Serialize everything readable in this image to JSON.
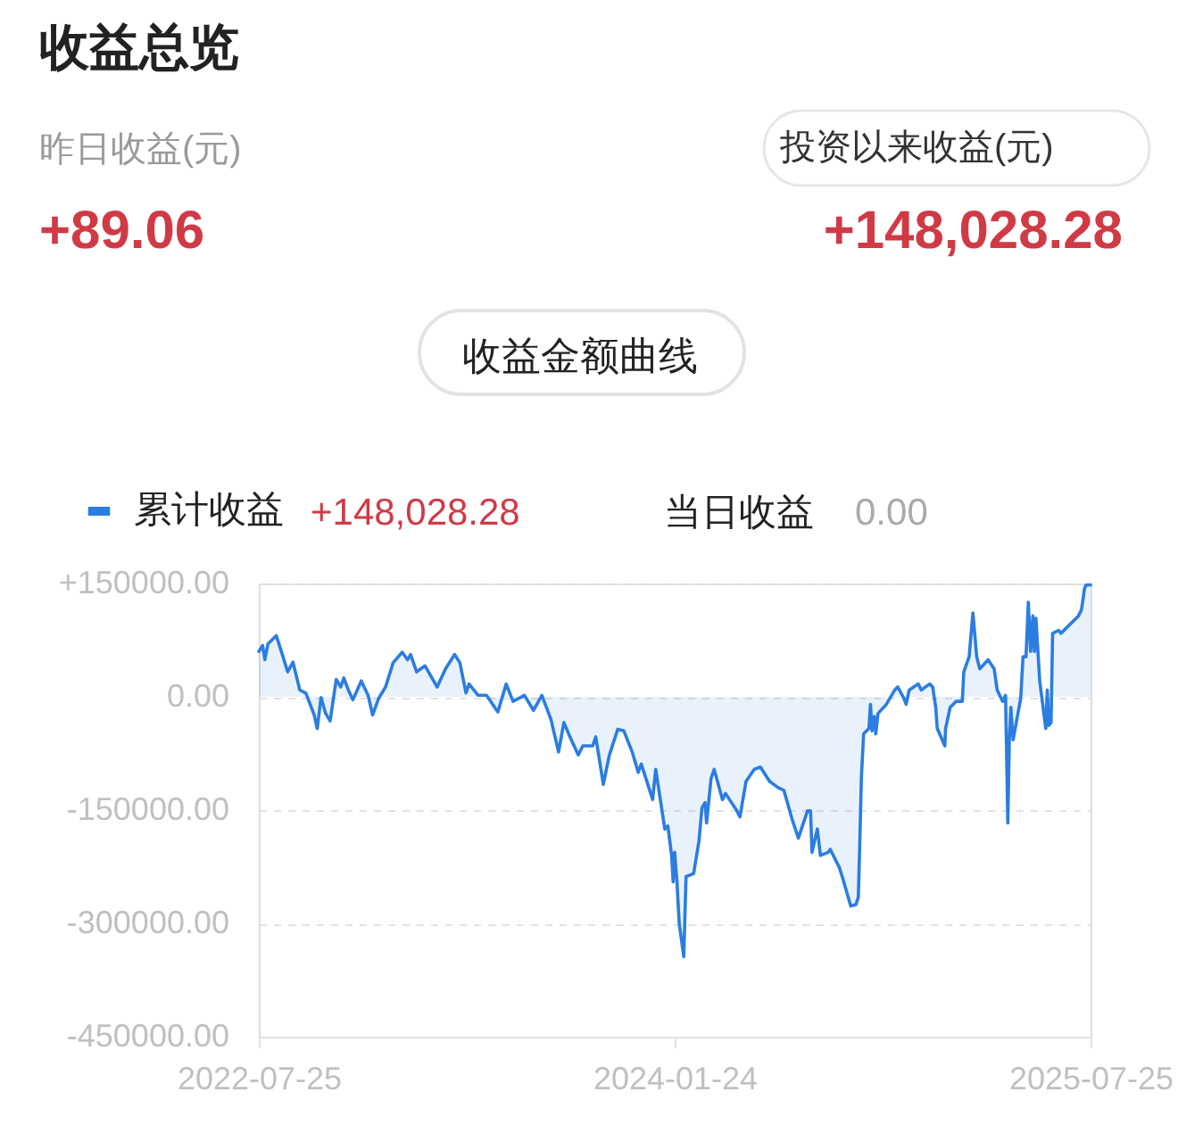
{
  "chart_data": {
    "type": "area",
    "title": "收益总览",
    "annotations": [
      "昨日收益(元)",
      "+89.06",
      "投资以来收益(元)",
      "+148,028.28",
      "收益金额曲线",
      "+148,028.28",
      "当日收益",
      "0.00"
    ],
    "x": [
      "2022-07-25",
      "2022-07-30",
      "2022-08-02",
      "2022-08-06",
      "2022-08-17",
      "2022-08-25",
      "2022-09-01",
      "2022-09-08",
      "2022-09-17",
      "2022-09-25",
      "2022-10-06",
      "2022-10-10",
      "2022-10-15",
      "2022-10-21",
      "2022-10-27",
      "2022-11-04",
      "2022-11-10",
      "2022-11-14",
      "2022-11-20",
      "2022-11-26",
      "2022-12-07",
      "2022-12-16",
      "2022-12-22",
      "2022-12-30",
      "2023-01-08",
      "2023-01-18",
      "2023-01-30",
      "2023-02-06",
      "2023-02-10",
      "2023-02-18",
      "2023-03-01",
      "2023-03-17",
      "2023-03-28",
      "2023-04-09",
      "2023-04-16",
      "2023-04-24",
      "2023-04-28",
      "2023-05-10",
      "2023-05-21",
      "2023-06-05",
      "2023-06-16",
      "2023-06-25",
      "2023-07-10",
      "2023-07-22",
      "2023-08-02",
      "2023-08-14",
      "2023-08-24",
      "2023-08-31",
      "2023-09-08",
      "2023-09-19",
      "2023-09-25",
      "2023-10-08",
      "2023-10-12",
      "2023-10-22",
      "2023-10-30",
      "2023-11-10",
      "2023-11-18",
      "2023-11-29",
      "2023-12-07",
      "2023-12-11",
      "2023-12-26",
      "2023-12-30",
      "2024-01-11",
      "2024-01-15",
      "2024-01-20",
      "2024-01-22",
      "2024-01-24",
      "2024-01-27",
      "2024-01-30",
      "2024-02-05",
      "2024-02-08",
      "2024-02-18",
      "2024-02-25",
      "2024-02-29",
      "2024-03-04",
      "2024-03-06",
      "2024-03-12",
      "2024-03-16",
      "2024-03-27",
      "2024-03-31",
      "2024-04-15",
      "2024-04-19",
      "2024-04-27",
      "2024-05-08",
      "2024-05-16",
      "2024-05-28",
      "2024-06-08",
      "2024-06-16",
      "2024-06-27",
      "2024-07-05",
      "2024-07-17",
      "2024-07-21",
      "2024-07-23",
      "2024-07-30",
      "2024-08-03",
      "2024-08-13",
      "2024-08-16",
      "2024-08-28",
      "2024-09-02",
      "2024-09-12",
      "2024-09-19",
      "2024-09-22",
      "2024-09-24",
      "2024-09-26",
      "2024-09-29",
      "2024-10-06",
      "2024-10-08",
      "2024-10-10",
      "2024-10-13",
      "2024-10-15",
      "2024-10-18",
      "2024-10-29",
      "2024-11-09",
      "2024-11-13",
      "2024-11-21",
      "2024-11-24",
      "2024-11-28",
      "2024-12-10",
      "2024-12-14",
      "2024-12-25",
      "2024-12-29",
      "2025-01-02",
      "2025-01-04",
      "2025-01-14",
      "2025-01-15",
      "2025-01-21",
      "2025-01-29",
      "2025-02-06",
      "2025-02-08",
      "2025-02-15",
      "2025-02-20",
      "2025-02-25",
      "2025-03-01",
      "2025-03-12",
      "2025-03-20",
      "2025-03-24",
      "2025-03-31",
      "2025-04-04",
      "2025-04-07",
      "2025-04-09",
      "2025-04-11",
      "2025-04-14",
      "2025-04-24",
      "2025-04-27",
      "2025-05-01",
      "2025-05-04",
      "2025-05-07",
      "2025-05-10",
      "2025-05-12",
      "2025-05-14",
      "2025-05-19",
      "2025-05-27",
      "2025-05-29",
      "2025-05-31",
      "2025-06-03",
      "2025-06-05",
      "2025-06-13",
      "2025-06-16",
      "2025-06-24",
      "2025-07-09",
      "2025-07-13",
      "2025-07-17",
      "2025-07-19",
      "2025-07-25"
    ],
    "series": [
      {
        "name": "累计收益",
        "color": "#2b7de0",
        "values": [
          60000,
          68000,
          49000,
          70000,
          81000,
          56000,
          33000,
          46000,
          9000,
          5000,
          -24000,
          -42000,
          -1000,
          -22000,
          -32000,
          23000,
          13000,
          25000,
          9000,
          -4000,
          21000,
          2000,
          -24000,
          -2000,
          13000,
          45000,
          59000,
          49000,
          56000,
          33000,
          41000,
          13000,
          37000,
          56000,
          45000,
          5000,
          17000,
          2000,
          2000,
          -20000,
          17000,
          -6000,
          2000,
          -18000,
          2000,
          -30000,
          -73000,
          -34000,
          -53000,
          -77000,
          -65000,
          -65000,
          -53000,
          -116000,
          -77000,
          -43000,
          -45000,
          -73000,
          -100000,
          -89000,
          -136000,
          -96000,
          -175000,
          -171000,
          -210000,
          -245000,
          -206000,
          -245000,
          -300000,
          -344000,
          -238000,
          -234000,
          -191000,
          -147000,
          -140000,
          -167000,
          -108000,
          -96000,
          -136000,
          -128000,
          -151000,
          -159000,
          -112000,
          -96000,
          -93000,
          -112000,
          -120000,
          -124000,
          -163000,
          -187000,
          -151000,
          -151000,
          -206000,
          -175000,
          -210000,
          -206000,
          -202000,
          -226000,
          -242000,
          -277000,
          -275000,
          -265000,
          -191000,
          -108000,
          -49000,
          -42000,
          -10000,
          -45000,
          -26000,
          -49000,
          -22000,
          -10000,
          9000,
          13000,
          -2000,
          -10000,
          9000,
          17000,
          9000,
          17000,
          13000,
          -14000,
          -42000,
          -65000,
          -42000,
          -14000,
          -6000,
          -6000,
          33000,
          53000,
          111000,
          53000,
          37000,
          49000,
          37000,
          9000,
          -6000,
          2000,
          -167000,
          -57000,
          -14000,
          -57000,
          -2000,
          53000,
          53000,
          125000,
          60000,
          107000,
          60000,
          104000,
          21000,
          -42000,
          9000,
          -38000,
          -34000,
          84000,
          88000,
          84000,
          92000,
          107000,
          115000,
          143000,
          148000,
          148028.28
        ]
      }
    ],
    "xlim": [
      "2022-07-25",
      "2025-07-25"
    ],
    "xticks": [
      "2022-07-25",
      "2024-01-24",
      "2025-07-25"
    ],
    "ylim": [
      -450000,
      150000
    ],
    "yticks": [
      {
        "value": 150000,
        "label": "+150000.00"
      },
      {
        "value": 0,
        "label": "0.00"
      },
      {
        "value": -150000,
        "label": "-150000.00"
      },
      {
        "value": -300000,
        "label": "-300000.00"
      },
      {
        "value": -450000,
        "label": "-450000.00"
      }
    ],
    "grid": "y",
    "legend": "top left"
  }
}
